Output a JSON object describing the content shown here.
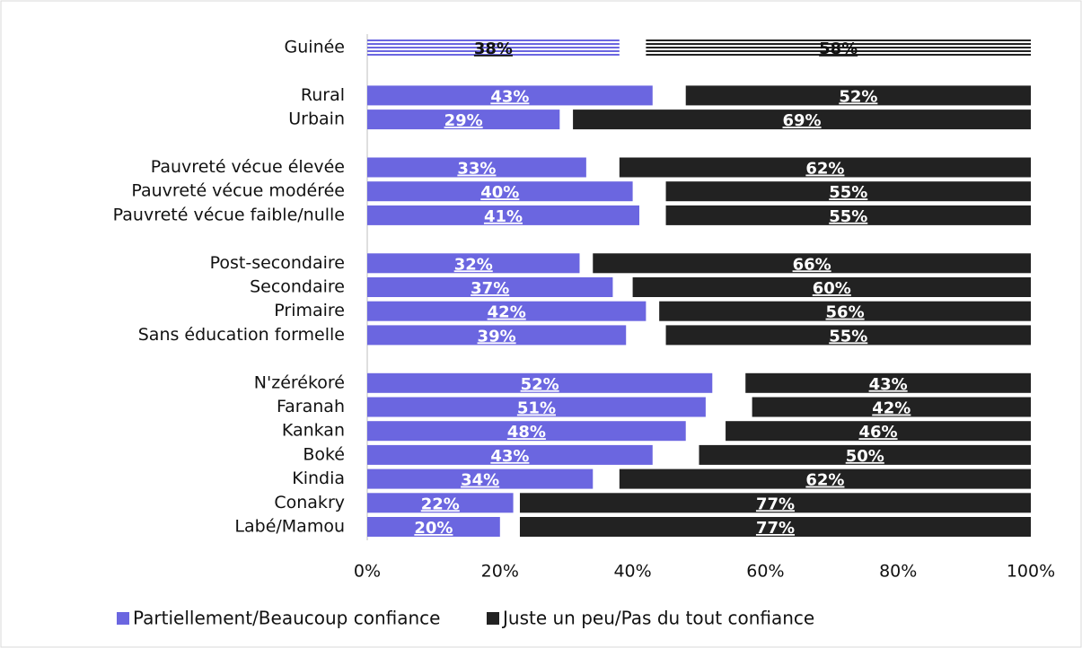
{
  "chart_data": {
    "type": "bar",
    "categories": [
      "Guinée",
      "Rural",
      "Urbain",
      "Pauvreté vécue élevée",
      "Pauvreté vécue modérée",
      "Pauvreté vécue faible/nulle",
      "Post-secondaire",
      "Secondaire",
      "Primaire",
      "Sans éducation formelle",
      "N'zérékoré",
      "Faranah",
      "Kankan",
      "Boké",
      "Kindia",
      "Conakry",
      "Labé/Mamou"
    ],
    "series": [
      {
        "name": "Partiellement/Beaucoup confiance",
        "color": "#6b66e0",
        "values": [
          38,
          43,
          29,
          33,
          40,
          41,
          32,
          37,
          42,
          39,
          52,
          51,
          48,
          43,
          34,
          22,
          20
        ],
        "value_labels": [
          "38%",
          "43%",
          "29%",
          "33%",
          "40%",
          "41%",
          "32%",
          "37%",
          "42%",
          "39%",
          "52%",
          "51%",
          "48%",
          "43%",
          "34%",
          "22%",
          "20%"
        ]
      },
      {
        "name": "Juste un peu/Pas du tout confiance",
        "color": "#222222",
        "values": [
          58,
          52,
          69,
          62,
          55,
          55,
          66,
          60,
          56,
          55,
          43,
          42,
          46,
          50,
          62,
          77,
          77
        ],
        "value_labels": [
          "58%",
          "52%",
          "69%",
          "62%",
          "55%",
          "55%",
          "66%",
          "60%",
          "56%",
          "55%",
          "43%",
          "42%",
          "46%",
          "50%",
          "62%",
          "77%",
          "77%"
        ]
      }
    ],
    "xlim": [
      0,
      100
    ],
    "xticks": [
      {
        "value": 0,
        "label": "0%"
      },
      {
        "value": 20,
        "label": "20%"
      },
      {
        "value": 40,
        "label": "40%"
      },
      {
        "value": 60,
        "label": "60%"
      },
      {
        "value": 80,
        "label": "80%"
      },
      {
        "value": 100,
        "label": "100%"
      }
    ],
    "legend": "bottom"
  }
}
